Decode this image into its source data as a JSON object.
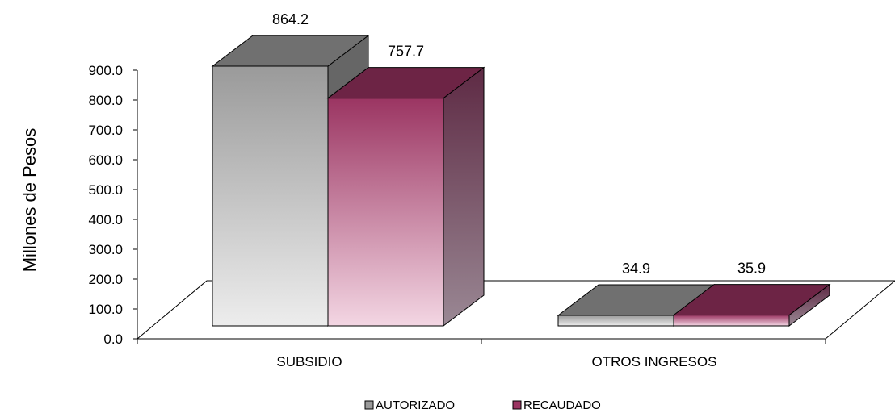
{
  "chart_data": {
    "type": "bar",
    "style": "3d-clustered-column",
    "categories": [
      "SUBSIDIO",
      "OTROS INGRESOS"
    ],
    "series": [
      {
        "name": "AUTORIZADO",
        "values": [
          864.2,
          34.9
        ],
        "labels": [
          "864.2",
          "34.9"
        ],
        "color": "#9a9a9a"
      },
      {
        "name": "RECAUDADO",
        "values": [
          757.7,
          35.9
        ],
        "labels": [
          "757.7",
          "35.9"
        ],
        "color": "#9b3562"
      }
    ],
    "ylabel": "Millones de Pesos",
    "xlabel": "",
    "ylim": [
      0,
      900
    ],
    "yticks": [
      "0.0",
      "100.0",
      "200.0",
      "300.0",
      "400.0",
      "500.0",
      "600.0",
      "700.0",
      "800.0",
      "900.0"
    ],
    "legend_position": "bottom",
    "grid": false
  }
}
